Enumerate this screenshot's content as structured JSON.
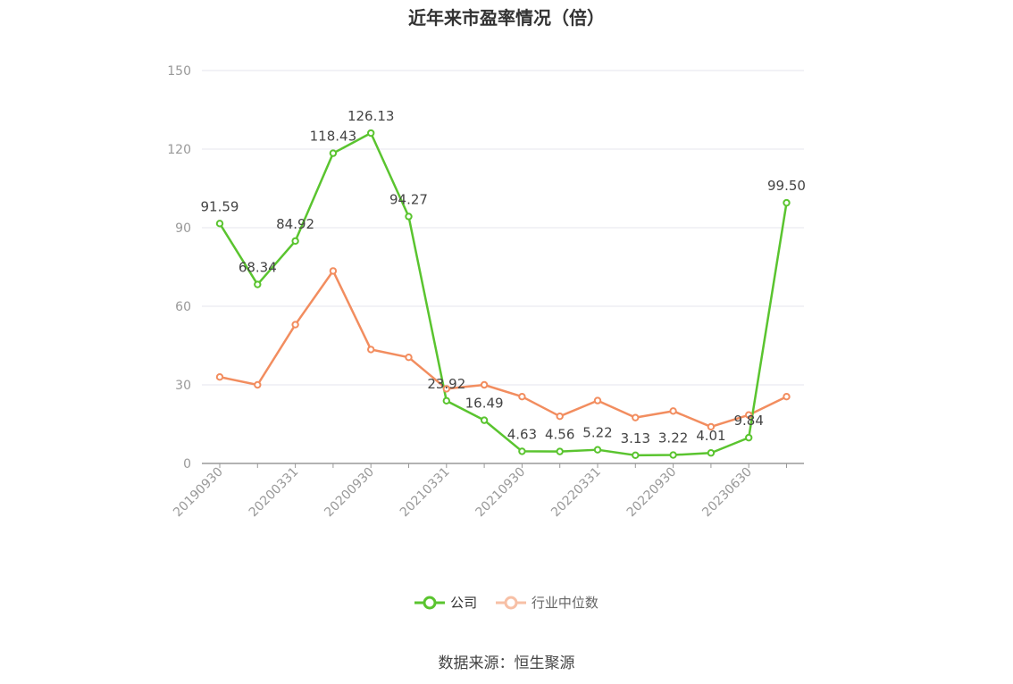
{
  "chart_data": {
    "type": "line",
    "title": "近年来市盈率情况（倍）",
    "source": "数据来源：恒生聚源",
    "ylim": [
      0,
      150
    ],
    "yticks": [
      "0",
      "30",
      "60",
      "90",
      "120",
      "150"
    ],
    "x_tick_labels": [
      "20190930",
      "20200331",
      "20200930",
      "20210331",
      "20210930",
      "20220331",
      "20220930",
      "20230630"
    ],
    "grid": true,
    "legend_position": "bottom",
    "series": [
      {
        "name": "公司",
        "color": "#5ac42f",
        "values": [
          91.59,
          68.34,
          84.92,
          118.43,
          126.13,
          94.27,
          23.92,
          16.49,
          4.63,
          4.56,
          5.22,
          3.13,
          3.22,
          4.01,
          9.84,
          99.5
        ],
        "labels": [
          "91.59",
          "68.34",
          "84.92",
          "118.43",
          "126.13",
          "94.27",
          "23.92",
          "16.49",
          "4.63",
          "4.56",
          "5.22",
          "3.13",
          "3.22",
          "4.01",
          "9.84",
          "99.50"
        ]
      },
      {
        "name": "行业中位数",
        "color": "#f28d5f",
        "values": [
          33.0,
          30.0,
          53.0,
          73.5,
          43.5,
          40.5,
          28.5,
          30.0,
          25.5,
          18.0,
          24.0,
          17.5,
          20.0,
          14.0,
          18.5,
          25.5
        ]
      }
    ]
  }
}
